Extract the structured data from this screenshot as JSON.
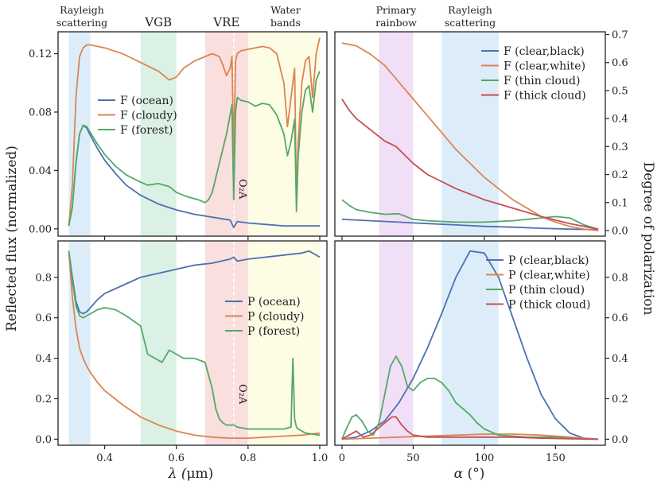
{
  "colors": {
    "ocean": "#4c72b0",
    "cloudy": "#dd8452",
    "forest": "#55a868",
    "thick": "#c44e52",
    "rayleigh_band": "#d6eaf8",
    "vgb_band": "#d5efe0",
    "vre_band": "#f8d9d7",
    "water_band": "#fdfbe0",
    "rainbow_band": "#eed9f6"
  },
  "labels": {
    "left_xlabel_pre": "λ (",
    "left_xlabel_mu": "μ",
    "left_xlabel_post": "m)",
    "right_xlabel_alpha": "α",
    "right_xlabel_post": " (°)",
    "left_ylabel": "Reflected flux (normalized)",
    "right_ylabel": "Degree of polarization",
    "o2a_top": "O₂A",
    "o2a_bottom": "O₂A"
  },
  "bands_left": [
    {
      "id": "rayleigh",
      "x0": 0.3,
      "x1": 0.36,
      "color": "#d6eaf8",
      "label1": "Rayleigh",
      "label2": "scattering"
    },
    {
      "id": "vgb",
      "x0": 0.5,
      "x1": 0.6,
      "color": "#d5efe0",
      "label1": "VGB",
      "label2": ""
    },
    {
      "id": "vre",
      "x0": 0.68,
      "x1": 0.8,
      "color": "#f8d9d7",
      "label1": "VRE",
      "label2": ""
    },
    {
      "id": "water",
      "x0": 0.8,
      "x1": 1.0,
      "color": "#fdfbe0",
      "label1": "Water",
      "label2": "bands"
    }
  ],
  "bands_right": [
    {
      "id": "rainbow",
      "x0": 26,
      "x1": 50,
      "color": "#eed9f6",
      "label1": "Primary",
      "label2": "rainbow"
    },
    {
      "id": "rayleigh",
      "x0": 70,
      "x1": 110,
      "color": "#d6eaf8",
      "label1": "Rayleigh",
      "label2": "scattering"
    }
  ],
  "chart_data": [
    {
      "id": "top-left",
      "type": "line",
      "xlim": [
        0.27,
        1.02
      ],
      "ylim": [
        -0.005,
        0.135
      ],
      "xticks": [
        0.4,
        0.6,
        0.8,
        1.0
      ],
      "xticklabels": [
        "0.4",
        "0.6",
        "0.8",
        "1.0"
      ],
      "yticks": [
        0.0,
        0.04,
        0.08,
        0.12
      ],
      "yticklabels": [
        "0.00",
        "0.04",
        "0.08",
        "0.12"
      ],
      "legend": "upper-left",
      "o2a_line": 0.76,
      "series": [
        {
          "name": "F (ocean)",
          "color": "#4c72b0",
          "x": [
            0.3,
            0.31,
            0.32,
            0.33,
            0.34,
            0.35,
            0.36,
            0.38,
            0.4,
            0.43,
            0.46,
            0.5,
            0.55,
            0.6,
            0.65,
            0.7,
            0.75,
            0.76,
            0.77,
            0.8,
            0.85,
            0.9,
            0.95,
            1.0
          ],
          "y": [
            0.002,
            0.015,
            0.045,
            0.065,
            0.071,
            0.069,
            0.064,
            0.055,
            0.047,
            0.038,
            0.03,
            0.023,
            0.017,
            0.013,
            0.01,
            0.008,
            0.006,
            0.001,
            0.005,
            0.004,
            0.003,
            0.002,
            0.002,
            0.002
          ]
        },
        {
          "name": "F (cloudy)",
          "color": "#dd8452",
          "x": [
            0.3,
            0.31,
            0.32,
            0.33,
            0.34,
            0.35,
            0.36,
            0.38,
            0.4,
            0.45,
            0.5,
            0.55,
            0.58,
            0.6,
            0.62,
            0.65,
            0.68,
            0.7,
            0.72,
            0.73,
            0.74,
            0.75,
            0.755,
            0.76,
            0.765,
            0.77,
            0.78,
            0.8,
            0.82,
            0.84,
            0.86,
            0.88,
            0.9,
            0.91,
            0.92,
            0.93,
            0.935,
            0.94,
            0.95,
            0.96,
            0.97,
            0.98,
            0.99,
            1.0
          ],
          "y": [
            0.002,
            0.03,
            0.09,
            0.118,
            0.124,
            0.126,
            0.126,
            0.125,
            0.124,
            0.12,
            0.114,
            0.108,
            0.102,
            0.104,
            0.11,
            0.115,
            0.118,
            0.12,
            0.118,
            0.112,
            0.105,
            0.11,
            0.118,
            0.05,
            0.115,
            0.12,
            0.122,
            0.123,
            0.124,
            0.125,
            0.124,
            0.12,
            0.1,
            0.07,
            0.09,
            0.11,
            0.02,
            0.06,
            0.1,
            0.115,
            0.118,
            0.09,
            0.12,
            0.131
          ]
        },
        {
          "name": "F (forest)",
          "color": "#55a868",
          "x": [
            0.3,
            0.31,
            0.32,
            0.33,
            0.34,
            0.35,
            0.36,
            0.38,
            0.4,
            0.43,
            0.46,
            0.5,
            0.52,
            0.55,
            0.58,
            0.6,
            0.63,
            0.66,
            0.68,
            0.69,
            0.7,
            0.71,
            0.72,
            0.73,
            0.74,
            0.75,
            0.755,
            0.76,
            0.765,
            0.77,
            0.78,
            0.8,
            0.82,
            0.84,
            0.86,
            0.88,
            0.9,
            0.91,
            0.92,
            0.93,
            0.935,
            0.94,
            0.95,
            0.96,
            0.97,
            0.98,
            0.99,
            1.0
          ],
          "y": [
            0.002,
            0.015,
            0.045,
            0.065,
            0.071,
            0.07,
            0.066,
            0.058,
            0.051,
            0.043,
            0.037,
            0.032,
            0.03,
            0.031,
            0.029,
            0.025,
            0.022,
            0.02,
            0.018,
            0.02,
            0.025,
            0.035,
            0.045,
            0.055,
            0.065,
            0.078,
            0.085,
            0.02,
            0.08,
            0.09,
            0.088,
            0.087,
            0.084,
            0.086,
            0.085,
            0.078,
            0.065,
            0.05,
            0.06,
            0.075,
            0.012,
            0.05,
            0.08,
            0.095,
            0.098,
            0.08,
            0.102,
            0.108
          ]
        }
      ]
    },
    {
      "id": "bottom-left",
      "type": "line",
      "xlim": [
        0.27,
        1.02
      ],
      "ylim": [
        -0.03,
        0.98
      ],
      "xticks": [
        0.4,
        0.6,
        0.8,
        1.0
      ],
      "xticklabels": [
        "0.4",
        "0.6",
        "0.8",
        "1.0"
      ],
      "yticks": [
        0.0,
        0.2,
        0.4,
        0.6,
        0.8
      ],
      "yticklabels": [
        "0.0",
        "0.2",
        "0.4",
        "0.6",
        "0.8"
      ],
      "legend": "center-right",
      "o2a_line": 0.76,
      "series": [
        {
          "name": "P (ocean)",
          "color": "#4c72b0",
          "x": [
            0.3,
            0.31,
            0.32,
            0.33,
            0.34,
            0.35,
            0.36,
            0.38,
            0.4,
            0.45,
            0.5,
            0.55,
            0.6,
            0.65,
            0.7,
            0.75,
            0.76,
            0.77,
            0.8,
            0.85,
            0.9,
            0.95,
            0.97,
            1.0
          ],
          "y": [
            0.93,
            0.8,
            0.68,
            0.63,
            0.62,
            0.63,
            0.65,
            0.69,
            0.72,
            0.76,
            0.8,
            0.82,
            0.84,
            0.86,
            0.87,
            0.89,
            0.9,
            0.88,
            0.89,
            0.9,
            0.91,
            0.92,
            0.93,
            0.9
          ]
        },
        {
          "name": "P (cloudy)",
          "color": "#dd8452",
          "x": [
            0.3,
            0.31,
            0.32,
            0.33,
            0.34,
            0.35,
            0.36,
            0.38,
            0.4,
            0.45,
            0.5,
            0.55,
            0.6,
            0.65,
            0.7,
            0.75,
            0.8,
            0.85,
            0.9,
            0.95,
            1.0
          ],
          "y": [
            0.93,
            0.7,
            0.55,
            0.45,
            0.4,
            0.36,
            0.33,
            0.28,
            0.24,
            0.17,
            0.11,
            0.07,
            0.04,
            0.02,
            0.01,
            0.005,
            0.005,
            0.01,
            0.015,
            0.02,
            0.03
          ]
        },
        {
          "name": "P (forest)",
          "color": "#55a868",
          "x": [
            0.3,
            0.31,
            0.32,
            0.33,
            0.34,
            0.35,
            0.36,
            0.38,
            0.4,
            0.43,
            0.46,
            0.5,
            0.52,
            0.54,
            0.56,
            0.58,
            0.6,
            0.62,
            0.65,
            0.68,
            0.7,
            0.71,
            0.72,
            0.73,
            0.74,
            0.75,
            0.76,
            0.77,
            0.8,
            0.85,
            0.9,
            0.92,
            0.925,
            0.93,
            0.935,
            0.94,
            0.95,
            0.96,
            1.0
          ],
          "y": [
            0.93,
            0.78,
            0.66,
            0.61,
            0.6,
            0.61,
            0.62,
            0.64,
            0.65,
            0.64,
            0.61,
            0.56,
            0.42,
            0.4,
            0.38,
            0.44,
            0.42,
            0.4,
            0.4,
            0.38,
            0.25,
            0.15,
            0.1,
            0.08,
            0.07,
            0.07,
            0.07,
            0.06,
            0.05,
            0.05,
            0.05,
            0.06,
            0.4,
            0.1,
            0.06,
            0.05,
            0.04,
            0.03,
            0.02
          ]
        }
      ]
    },
    {
      "id": "top-right",
      "type": "line",
      "xlim": [
        -5,
        185
      ],
      "ylim": [
        -0.02,
        0.71
      ],
      "xticks": [
        0,
        50,
        100,
        150
      ],
      "xticklabels": [
        "0",
        "50",
        "100",
        "150"
      ],
      "yticks": [
        0.0,
        0.1,
        0.2,
        0.3,
        0.4,
        0.5,
        0.6,
        0.7
      ],
      "yticklabels": [
        "0.0",
        "0.1",
        "0.2",
        "0.3",
        "0.4",
        "0.5",
        "0.6",
        "0.7"
      ],
      "legend": "upper-right",
      "series": [
        {
          "name": "F (clear,black)",
          "color": "#4c72b0",
          "x": [
            0,
            20,
            40,
            60,
            80,
            100,
            120,
            140,
            160,
            180
          ],
          "y": [
            0.04,
            0.035,
            0.03,
            0.025,
            0.02,
            0.015,
            0.012,
            0.008,
            0.005,
            0.003
          ]
        },
        {
          "name": "F (clear,white)",
          "color": "#dd8452",
          "x": [
            0,
            10,
            20,
            30,
            40,
            50,
            60,
            70,
            80,
            90,
            100,
            110,
            120,
            130,
            140,
            150,
            160,
            170,
            180
          ],
          "y": [
            0.67,
            0.66,
            0.63,
            0.59,
            0.53,
            0.47,
            0.41,
            0.35,
            0.29,
            0.24,
            0.19,
            0.15,
            0.11,
            0.08,
            0.05,
            0.03,
            0.015,
            0.005,
            0.0
          ]
        },
        {
          "name": "F (thin cloud)",
          "color": "#55a868",
          "x": [
            0,
            5,
            10,
            20,
            30,
            40,
            50,
            60,
            80,
            100,
            120,
            140,
            150,
            160,
            170,
            180
          ],
          "y": [
            0.11,
            0.09,
            0.075,
            0.065,
            0.058,
            0.06,
            0.04,
            0.035,
            0.03,
            0.03,
            0.035,
            0.045,
            0.05,
            0.045,
            0.02,
            0.005
          ]
        },
        {
          "name": "F (thick cloud)",
          "color": "#c44e52",
          "x": [
            0,
            5,
            10,
            20,
            30,
            38,
            42,
            50,
            60,
            80,
            100,
            120,
            140,
            160,
            180
          ],
          "y": [
            0.47,
            0.43,
            0.4,
            0.36,
            0.32,
            0.3,
            0.28,
            0.24,
            0.2,
            0.15,
            0.11,
            0.08,
            0.05,
            0.025,
            0.005
          ]
        }
      ]
    },
    {
      "id": "bottom-right",
      "type": "line",
      "xlim": [
        -5,
        185
      ],
      "ylim": [
        -0.03,
        0.98
      ],
      "xticks": [
        0,
        50,
        100,
        150
      ],
      "xticklabels": [
        "0",
        "50",
        "100",
        "150"
      ],
      "yticks": [
        0.0,
        0.2,
        0.4,
        0.6,
        0.8
      ],
      "yticklabels": [
        "0.0",
        "0.2",
        "0.4",
        "0.6",
        "0.8"
      ],
      "legend": "upper-right",
      "series": [
        {
          "name": "P (clear,black)",
          "color": "#4c72b0",
          "x": [
            0,
            10,
            20,
            30,
            40,
            50,
            60,
            70,
            80,
            90,
            100,
            110,
            120,
            130,
            140,
            150,
            160,
            170,
            180
          ],
          "y": [
            0.0,
            0.01,
            0.04,
            0.09,
            0.18,
            0.3,
            0.45,
            0.62,
            0.8,
            0.93,
            0.92,
            0.8,
            0.6,
            0.4,
            0.22,
            0.1,
            0.03,
            0.005,
            0.0
          ]
        },
        {
          "name": "P (clear,white)",
          "color": "#dd8452",
          "x": [
            0,
            20,
            40,
            60,
            80,
            100,
            120,
            140,
            160,
            180
          ],
          "y": [
            0.0,
            0.005,
            0.01,
            0.015,
            0.02,
            0.025,
            0.025,
            0.02,
            0.01,
            0.0
          ]
        },
        {
          "name": "P (thin cloud)",
          "color": "#55a868",
          "x": [
            0,
            3,
            7,
            10,
            14,
            18,
            22,
            26,
            30,
            34,
            38,
            42,
            46,
            50,
            55,
            60,
            65,
            70,
            75,
            80,
            85,
            90,
            95,
            100,
            110,
            120,
            130,
            140,
            150,
            160,
            170,
            180
          ],
          "y": [
            0.0,
            0.05,
            0.11,
            0.12,
            0.09,
            0.04,
            0.02,
            0.08,
            0.22,
            0.36,
            0.41,
            0.36,
            0.26,
            0.24,
            0.28,
            0.3,
            0.3,
            0.28,
            0.24,
            0.18,
            0.15,
            0.12,
            0.08,
            0.05,
            0.02,
            0.015,
            0.01,
            0.01,
            0.01,
            0.005,
            0.0,
            0.0
          ]
        },
        {
          "name": "P (thick cloud)",
          "color": "#c44e52",
          "x": [
            0,
            5,
            10,
            15,
            20,
            25,
            30,
            35,
            38,
            42,
            46,
            50,
            60,
            80,
            100,
            120,
            140,
            160,
            180
          ],
          "y": [
            0.0,
            0.02,
            0.04,
            0.01,
            0.02,
            0.05,
            0.08,
            0.11,
            0.11,
            0.07,
            0.04,
            0.02,
            0.01,
            0.01,
            0.01,
            0.01,
            0.005,
            0.002,
            0.0
          ]
        }
      ]
    }
  ]
}
